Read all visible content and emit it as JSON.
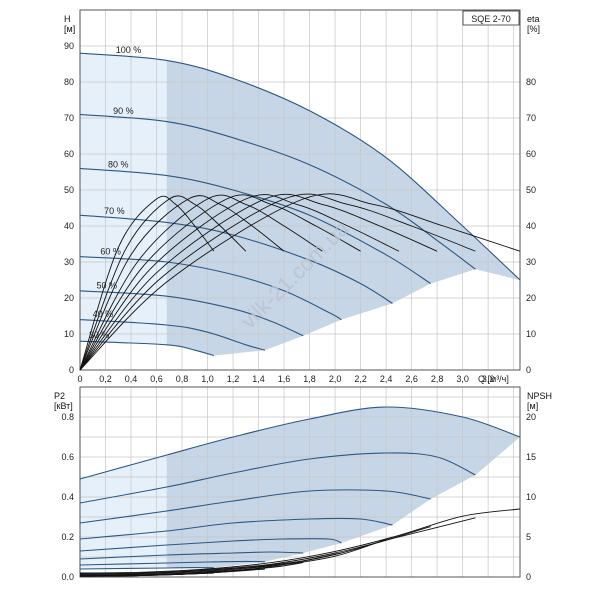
{
  "model_label": "SQE 2-70",
  "watermark": "vilk-21.com.ua",
  "colors": {
    "curve": "#2c5784",
    "region": "#c7d6e6",
    "region_light": "#e6f0fa",
    "eff": "#111111",
    "grid": "#c6c6c6",
    "npsh": "#111111"
  },
  "chart_data": [
    {
      "type": "line",
      "title": "",
      "xlabel": "Q [м³/ч]",
      "ylabel": "H [м]",
      "y2label": "eta [%]",
      "xlim": [
        0,
        3.45
      ],
      "ylim": [
        0,
        100
      ],
      "y2lim": [
        0,
        100
      ],
      "xticks": [
        0,
        0.2,
        0.4,
        0.6,
        0.8,
        1.0,
        1.2,
        1.4,
        1.6,
        1.8,
        2.0,
        2.2,
        2.4,
        2.6,
        2.8,
        3.0,
        3.2
      ],
      "yticks": [
        0,
        10,
        20,
        30,
        40,
        50,
        60,
        70,
        80,
        90
      ],
      "y2ticks": [
        0,
        10,
        20,
        30,
        40,
        50,
        60,
        70,
        80
      ],
      "grid": true,
      "operating_region": {
        "light_until_q": 0.68
      },
      "series": [
        {
          "name": "100 %",
          "x": [
            0,
            0.68,
            1.2,
            1.8,
            2.4,
            3.0,
            3.45
          ],
          "y": [
            88,
            86,
            81,
            72,
            59,
            40,
            25
          ]
        },
        {
          "name": "90 %",
          "x": [
            0,
            0.68,
            1.2,
            1.8,
            2.4,
            2.8,
            3.1
          ],
          "y": [
            71,
            69,
            64.5,
            57,
            46,
            36,
            28
          ]
        },
        {
          "name": "80 %",
          "x": [
            0,
            0.68,
            1.2,
            1.8,
            2.4,
            2.75
          ],
          "y": [
            56,
            54,
            50,
            43,
            32,
            24
          ]
        },
        {
          "name": "70 %",
          "x": [
            0,
            0.68,
            1.2,
            1.8,
            2.2,
            2.45
          ],
          "y": [
            43,
            41,
            37.5,
            30.5,
            24,
            18.5
          ]
        },
        {
          "name": "60 %",
          "x": [
            0,
            0.68,
            1.2,
            1.6,
            1.95,
            2.05
          ],
          "y": [
            31.5,
            30,
            26.5,
            22,
            16,
            14
          ]
        },
        {
          "name": "50 %",
          "x": [
            0,
            0.68,
            1.2,
            1.5,
            1.75
          ],
          "y": [
            22,
            20.5,
            17,
            13.5,
            9.5
          ]
        },
        {
          "name": "40 %",
          "x": [
            0,
            0.68,
            1.0,
            1.3,
            1.45
          ],
          "y": [
            14,
            12.5,
            10.5,
            7,
            5.5
          ]
        },
        {
          "name": "30 %",
          "x": [
            0,
            0.68,
            0.9,
            1.05
          ],
          "y": [
            8,
            7,
            5.5,
            4
          ]
        }
      ],
      "region_bottom": {
        "x": [
          1.05,
          1.45,
          1.75,
          2.05,
          2.45,
          2.75,
          3.1,
          3.45
        ],
        "y": [
          4,
          5.5,
          9.5,
          14,
          18.5,
          24,
          28,
          25
        ]
      },
      "efficiency_curves": [
        {
          "x": [
            0,
            0.3,
            0.6,
            0.75,
            0.9,
            1.05
          ],
          "y": [
            0,
            34,
            47.5,
            46,
            40,
            33
          ]
        },
        {
          "x": [
            0,
            0.35,
            0.7,
            0.9,
            1.1,
            1.3
          ],
          "y": [
            0,
            33,
            47.5,
            46,
            40,
            33
          ]
        },
        {
          "x": [
            0,
            0.4,
            0.85,
            1.1,
            1.35,
            1.6
          ],
          "y": [
            0,
            32,
            47.5,
            46,
            40,
            33
          ]
        },
        {
          "x": [
            0,
            0.45,
            1.0,
            1.3,
            1.6,
            1.9
          ],
          "y": [
            0,
            30,
            47.5,
            46,
            40,
            33
          ]
        },
        {
          "x": [
            0,
            0.5,
            1.15,
            1.5,
            1.85,
            2.2
          ],
          "y": [
            0,
            29,
            47.5,
            46,
            40,
            33
          ]
        },
        {
          "x": [
            0,
            0.55,
            1.3,
            1.7,
            2.1,
            2.5
          ],
          "y": [
            0,
            28,
            47.5,
            46,
            40,
            33
          ]
        },
        {
          "x": [
            0,
            0.6,
            1.45,
            1.9,
            2.35,
            2.8
          ],
          "y": [
            0,
            27,
            47.5,
            46,
            40,
            33
          ]
        },
        {
          "x": [
            0,
            0.65,
            1.6,
            2.1,
            2.6,
            3.1
          ],
          "y": [
            0,
            26,
            47.5,
            46,
            40,
            33
          ]
        },
        {
          "x": [
            0,
            0.7,
            1.75,
            2.3,
            2.85,
            3.45
          ],
          "y": [
            0,
            25,
            47.5,
            46,
            40,
            33
          ]
        }
      ]
    },
    {
      "type": "line",
      "title": "",
      "ylabel": "P2 [кВт]",
      "y2label": "NPSH [м]",
      "xlim": [
        0,
        3.45
      ],
      "ylim": [
        0,
        0.95
      ],
      "y2lim": [
        0,
        23.75
      ],
      "yticks": [
        0.0,
        0.2,
        0.4,
        0.6,
        0.8
      ],
      "y2ticks": [
        0,
        5,
        10,
        15,
        20
      ],
      "grid": true,
      "series": [
        {
          "name": "100 %",
          "x": [
            0,
            0.68,
            1.2,
            1.8,
            2.4,
            3.0,
            3.45
          ],
          "y": [
            0.49,
            0.61,
            0.7,
            0.79,
            0.85,
            0.8,
            0.7
          ]
        },
        {
          "name": "90 %",
          "x": [
            0,
            0.68,
            1.2,
            1.8,
            2.4,
            2.8,
            3.1
          ],
          "y": [
            0.37,
            0.45,
            0.52,
            0.59,
            0.62,
            0.6,
            0.51
          ]
        },
        {
          "name": "80 %",
          "x": [
            0,
            0.68,
            1.2,
            1.8,
            2.4,
            2.75
          ],
          "y": [
            0.27,
            0.33,
            0.38,
            0.43,
            0.43,
            0.39
          ]
        },
        {
          "name": "70 %",
          "x": [
            0,
            0.68,
            1.2,
            1.8,
            2.2,
            2.45
          ],
          "y": [
            0.19,
            0.23,
            0.27,
            0.29,
            0.29,
            0.26
          ]
        },
        {
          "name": "60 %",
          "x": [
            0,
            0.68,
            1.2,
            1.6,
            1.95,
            2.05
          ],
          "y": [
            0.13,
            0.16,
            0.18,
            0.19,
            0.19,
            0.17
          ]
        },
        {
          "name": "50 %",
          "x": [
            0,
            0.68,
            1.2,
            1.5,
            1.75
          ],
          "y": [
            0.09,
            0.11,
            0.12,
            0.125,
            0.12
          ]
        },
        {
          "name": "40 %",
          "x": [
            0,
            0.68,
            1.0,
            1.3,
            1.45
          ],
          "y": [
            0.06,
            0.07,
            0.075,
            0.078,
            0.076
          ]
        },
        {
          "name": "30 %",
          "x": [
            0,
            0.68,
            0.9,
            1.05
          ],
          "y": [
            0.04,
            0.045,
            0.047,
            0.046
          ]
        }
      ],
      "npsh_curves": [
        {
          "x": [
            0,
            0.5,
            1.0,
            1.5,
            2.0,
            2.5,
            3.0,
            3.45
          ],
          "y": [
            0.5,
            0.6,
            1.0,
            1.8,
            3.2,
            5.2,
            7.6,
            8.5
          ]
        },
        {
          "x": [
            0,
            0.5,
            1.0,
            1.5,
            2.0,
            2.5,
            3.1
          ],
          "y": [
            0.4,
            0.5,
            0.9,
            1.6,
            3.0,
            5.0,
            7.4
          ]
        },
        {
          "x": [
            0,
            0.5,
            1.0,
            1.5,
            2.0,
            2.75
          ],
          "y": [
            0.3,
            0.4,
            0.8,
            1.5,
            2.8,
            6.3
          ]
        },
        {
          "x": [
            0,
            0.5,
            1.0,
            1.5,
            2.0,
            2.45
          ],
          "y": [
            0.2,
            0.3,
            0.7,
            1.4,
            2.6,
            5.0
          ]
        },
        {
          "x": [
            0,
            0.5,
            1.0,
            1.5,
            2.05
          ],
          "y": [
            0.1,
            0.2,
            0.6,
            1.3,
            3.0
          ]
        },
        {
          "x": [
            0,
            0.5,
            1.0,
            1.5,
            1.75
          ],
          "y": [
            0.1,
            0.2,
            0.5,
            1.2,
            1.8
          ]
        },
        {
          "x": [
            0,
            0.5,
            1.0,
            1.45
          ],
          "y": [
            0.1,
            0.2,
            0.5,
            1.0
          ]
        },
        {
          "x": [
            0,
            0.5,
            1.05
          ],
          "y": [
            0.1,
            0.2,
            0.5
          ]
        }
      ]
    }
  ]
}
